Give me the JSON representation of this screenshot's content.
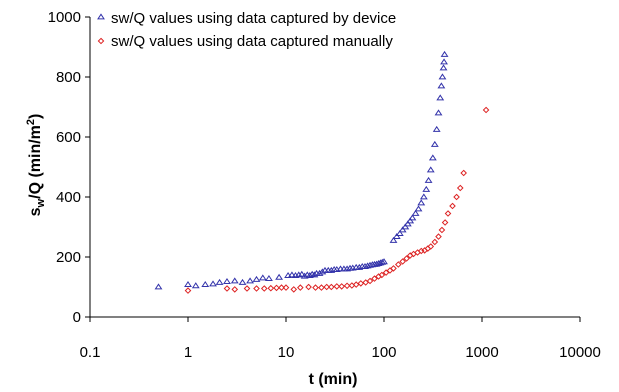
{
  "chart_data": {
    "type": "scatter",
    "x_scale": "log",
    "xlim": [
      0.1,
      10000
    ],
    "ylim": [
      0,
      1000
    ],
    "x_ticks": [
      0.1,
      1,
      10,
      100,
      1000,
      10000
    ],
    "x_tick_labels": [
      "0.1",
      "1",
      "10",
      "100",
      "1000",
      "10000"
    ],
    "y_ticks": [
      0,
      200,
      400,
      600,
      800,
      1000
    ],
    "y_tick_labels": [
      "0",
      "200",
      "400",
      "600",
      "800",
      "1000"
    ],
    "xlabel": "t (min)",
    "ylabel": {
      "base": "s",
      "sub": "w",
      "mid": "/Q (min/m",
      "sup": "2",
      "end": ")"
    },
    "grid": false,
    "legend_position": "top-left",
    "series": [
      {
        "name": "sw/Q values using data captured by device",
        "marker": "triangle",
        "color": "#3333aa",
        "x": [
          0.5,
          1,
          1.2,
          1.5,
          1.8,
          2.1,
          2.5,
          3.0,
          3.6,
          4.3,
          5.0,
          5.8,
          6.7,
          8.5,
          10.5,
          11.5,
          12.5,
          13.5,
          14.5,
          15.5,
          16.5,
          17.5,
          18.5,
          19.5,
          20.5,
          22,
          23.5,
          25,
          27,
          29,
          31,
          33,
          36,
          39,
          42,
          45,
          48,
          52,
          56,
          60,
          64,
          68,
          72,
          76,
          80,
          84,
          88,
          92,
          96,
          100,
          125,
          135,
          145,
          155,
          165,
          175,
          185,
          195,
          210,
          225,
          240,
          255,
          270,
          285,
          300,
          315,
          330,
          345,
          360,
          375,
          385,
          395,
          405,
          410,
          415
        ],
        "y": [
          100,
          108,
          104,
          108,
          110,
          115,
          118,
          120,
          115,
          120,
          125,
          130,
          128,
          132,
          138,
          140,
          138,
          140,
          142,
          136,
          140,
          138,
          142,
          140,
          145,
          145,
          150,
          155,
          155,
          155,
          158,
          158,
          160,
          160,
          160,
          162,
          163,
          165,
          165,
          168,
          168,
          170,
          172,
          174,
          175,
          176,
          178,
          180,
          182,
          184,
          255,
          268,
          278,
          290,
          300,
          310,
          320,
          330,
          345,
          360,
          380,
          400,
          425,
          455,
          490,
          530,
          575,
          625,
          680,
          730,
          770,
          800,
          830,
          850,
          875
        ]
      },
      {
        "name": "sw/Q values using data captured manually",
        "marker": "diamond",
        "color": "#dd2222",
        "x": [
          1,
          2.5,
          3,
          4,
          5,
          6,
          7,
          8,
          9,
          10,
          12,
          14,
          17,
          20,
          23,
          26,
          29,
          33,
          37,
          42,
          47,
          52,
          58,
          65,
          72,
          80,
          88,
          95,
          105,
          115,
          125,
          140,
          155,
          170,
          185,
          200,
          220,
          240,
          260,
          280,
          300,
          330,
          360,
          390,
          420,
          450,
          500,
          550,
          600,
          650,
          1100
        ],
        "y": [
          88,
          95,
          92,
          95,
          95,
          95,
          96,
          97,
          98,
          98,
          92,
          98,
          100,
          98,
          98,
          100,
          100,
          102,
          102,
          104,
          105,
          108,
          112,
          115,
          120,
          128,
          135,
          140,
          148,
          155,
          162,
          175,
          185,
          195,
          205,
          210,
          215,
          220,
          222,
          228,
          235,
          250,
          268,
          290,
          315,
          345,
          370,
          400,
          430,
          480,
          690
        ]
      }
    ]
  }
}
